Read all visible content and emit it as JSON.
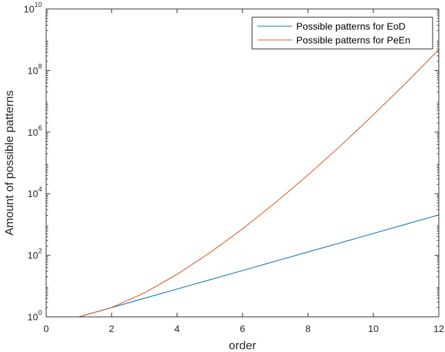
{
  "chart_data": {
    "type": "line",
    "xlabel": "order",
    "ylabel": "Amount of possible patterns",
    "xlim": [
      0,
      12
    ],
    "ylim": [
      1,
      10000000000
    ],
    "yscale": "log",
    "xticks": [
      0,
      2,
      4,
      6,
      8,
      10,
      12
    ],
    "yticks": [
      {
        "base": "10",
        "exp": "0",
        "value": 1
      },
      {
        "base": "10",
        "exp": "2",
        "value": 100
      },
      {
        "base": "10",
        "exp": "4",
        "value": 10000
      },
      {
        "base": "10",
        "exp": "6",
        "value": 1000000
      },
      {
        "base": "10",
        "exp": "8",
        "value": 100000000
      },
      {
        "base": "10",
        "exp": "10",
        "value": 10000000000
      }
    ],
    "grid": false,
    "legend_position": "top-right",
    "series": [
      {
        "name": "Possible patterns for EoD",
        "color": "#0072BD",
        "x": [
          1,
          2,
          3,
          4,
          5,
          6,
          7,
          8,
          9,
          10,
          11,
          12
        ],
        "y": [
          1,
          2,
          4,
          8,
          16,
          32,
          64,
          128,
          256,
          512,
          1024,
          2048
        ]
      },
      {
        "name": "Possible patterns for PeEn",
        "color": "#D95319",
        "x": [
          1,
          2,
          3,
          4,
          5,
          6,
          7,
          8,
          9,
          10,
          11,
          12
        ],
        "y": [
          1,
          2,
          6,
          24,
          120,
          720,
          5040,
          40320,
          362880,
          3628800,
          39916800,
          479001600
        ]
      }
    ]
  }
}
